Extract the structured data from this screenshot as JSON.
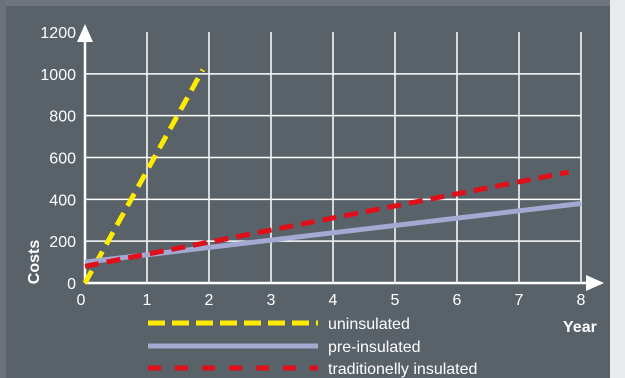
{
  "chart_data": {
    "type": "line",
    "title": "",
    "xlabel": "Year",
    "ylabel": "Costs",
    "xlim": [
      0,
      8
    ],
    "ylim": [
      0,
      1200
    ],
    "x_ticks": [
      "0",
      "1",
      "2",
      "3",
      "4",
      "5",
      "6",
      "7",
      "8"
    ],
    "y_ticks": [
      "0",
      "200",
      "400",
      "600",
      "800",
      "1000",
      "1200"
    ],
    "grid": true,
    "legend_position": "bottom",
    "series": [
      {
        "name": "uninsulated",
        "color": "#ffeb00",
        "style": "dashed",
        "x": [
          0,
          1.9
        ],
        "y": [
          0,
          1020
        ]
      },
      {
        "name": "pre-insulated",
        "color": "#a3a9d1",
        "style": "solid",
        "x": [
          0,
          8
        ],
        "y": [
          100,
          380
        ]
      },
      {
        "name": "traditionelly insulated",
        "color": "#e0101a",
        "style": "dashed",
        "x": [
          0,
          7.8
        ],
        "y": [
          80,
          530
        ]
      }
    ]
  },
  "colors": {
    "background": "#596169",
    "grid": "#ffffff",
    "text": "#ffffff"
  }
}
